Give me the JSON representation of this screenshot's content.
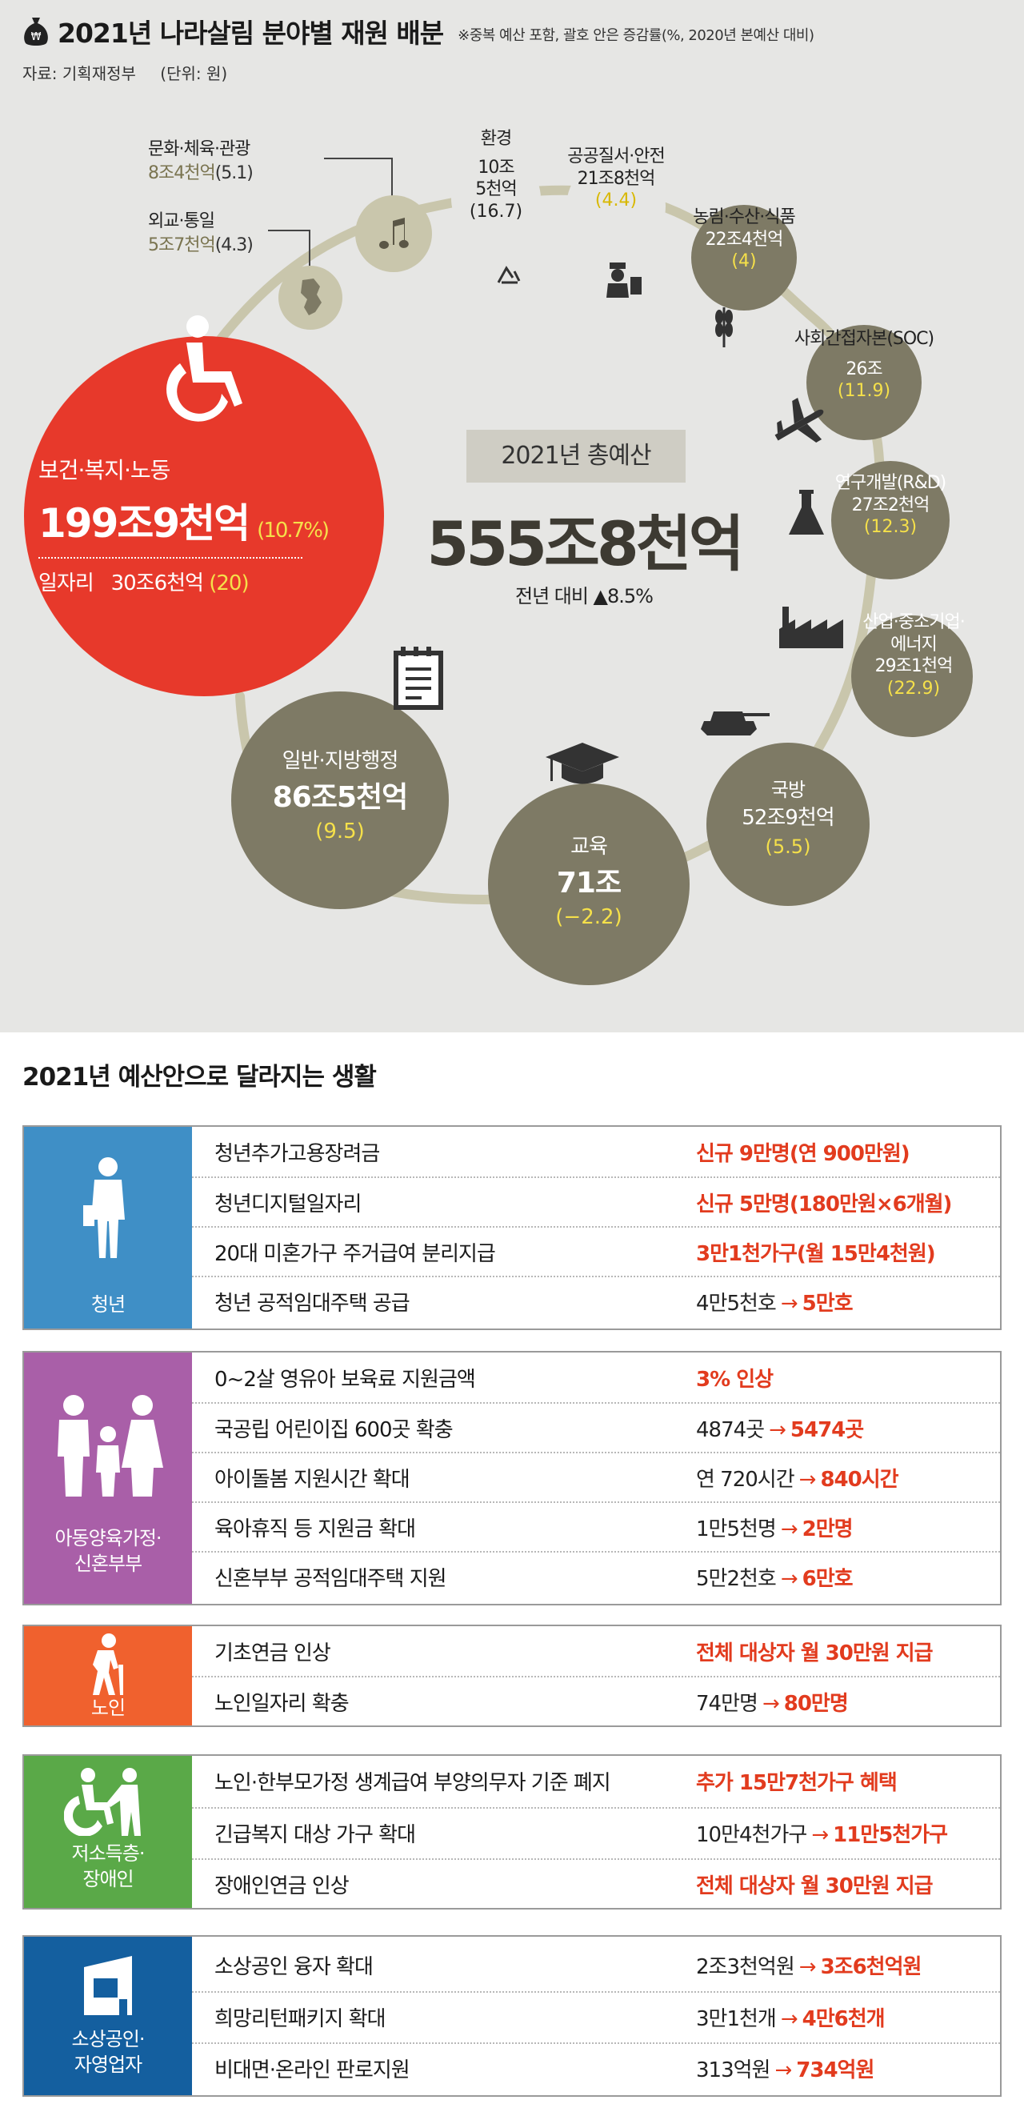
{
  "header": {
    "title": "2021년 나라살림 분야별 재원 배분",
    "note": "※중복 예산 포함, 괄호 안은 증감률(%, 2020년 본예산 대비)",
    "source": "자료: 기획재정부",
    "unit": "(단위: 원)"
  },
  "total": {
    "label": "2021년 총예산",
    "amount": "555조8천억",
    "change": "전년 대비 ▲8.5%"
  },
  "chart_data": {
    "type": "bubble",
    "title": "2021년 나라살림 분야별 재원 배분",
    "unit": "원",
    "change_basis": "증감률(%, 2020년 본예산 대비)",
    "categories": [
      {
        "name": "보건·복지·노동",
        "amount_trillion": 199.9,
        "change_pct": 10.7
      },
      {
        "name": "일자리",
        "amount_trillion": 30.6,
        "change_pct": 20
      },
      {
        "name": "외교·통일",
        "amount_trillion": 5.7,
        "change_pct": 4.3
      },
      {
        "name": "문화·체육·관광",
        "amount_trillion": 8.4,
        "change_pct": 5.1
      },
      {
        "name": "환경",
        "amount_trillion": 10.5,
        "change_pct": 16.7
      },
      {
        "name": "공공질서·안전",
        "amount_trillion": 21.8,
        "change_pct": 4.4
      },
      {
        "name": "농림·수산·식품",
        "amount_trillion": 22.4,
        "change_pct": 4
      },
      {
        "name": "사회간접자본(SOC)",
        "amount_trillion": 26,
        "change_pct": 11.9
      },
      {
        "name": "연구개발(R&D)",
        "amount_trillion": 27.2,
        "change_pct": 12.3
      },
      {
        "name": "산업·중소기업·에너지",
        "amount_trillion": 29.1,
        "change_pct": 22.9
      },
      {
        "name": "국방",
        "amount_trillion": 52.9,
        "change_pct": 5.5
      },
      {
        "name": "교육",
        "amount_trillion": 71,
        "change_pct": -2.2
      },
      {
        "name": "일반·지방행정",
        "amount_trillion": 86.5,
        "change_pct": 9.5
      }
    ]
  },
  "labels": {
    "welfare": {
      "name": "보건·복지·노동",
      "amount": "199조9천억",
      "pct": "(10.7%)",
      "sub_name": "일자리",
      "sub_amount": "30조6천억",
      "sub_pct": "(20)"
    },
    "diplomacy": {
      "name": "외교·통일",
      "amount": "5조7천억",
      "pct": "(4.3)"
    },
    "culture": {
      "name": "문화·체육·관광",
      "amount": "8조4천억",
      "pct": "(5.1)"
    },
    "environment": {
      "name": "환경",
      "amount1": "10조",
      "amount2": "5천억",
      "pct": "(16.7)"
    },
    "safety": {
      "name": "공공질서·안전",
      "amount": "21조8천억",
      "pct": "(4.4)"
    },
    "agriculture": {
      "name": "농림·수산·식품",
      "amount": "22조4천억",
      "pct": "(4)"
    },
    "soc": {
      "name": "사회간접자본(SOC)",
      "amount": "26조",
      "pct": "(11.9)"
    },
    "rnd": {
      "name": "연구개발(R&D)",
      "amount": "27조2천억",
      "pct": "(12.3)"
    },
    "industry": {
      "name1": "산업·중소기업·",
      "name2": "에너지",
      "amount": "29조1천억",
      "pct": "(22.9)"
    },
    "defense": {
      "name": "국방",
      "amount": "52조9천억",
      "pct": "(5.5)"
    },
    "education": {
      "name": "교육",
      "amount": "71조",
      "pct": "(−2.2)"
    },
    "admin": {
      "name": "일반·지방행정",
      "amount": "86조5천억",
      "pct": "(9.5)"
    }
  },
  "colors": {
    "background": "#e6e6e4",
    "bubble": "#7e7a65",
    "bubble_light": "#c9c6ac",
    "ring": "#c9c6ac",
    "welfare": "#e7392b",
    "highlight_yellow": "#f5e04a",
    "accent_red": "#e23b1e",
    "group_youth": "#3f8fc6",
    "group_family": "#a95fa8",
    "group_elderly": "#f0612e",
    "group_lowincome": "#5aa948",
    "group_business": "#145f9f"
  },
  "section2": {
    "title": "2021년 예산안으로 달라지는 생활",
    "groups": [
      {
        "name": "청년",
        "icon": "young-person-icon",
        "rows": [
          {
            "item": "청년추가고용장려금",
            "value": "신규 9만명(연 900만원)"
          },
          {
            "item": "청년디지털일자리",
            "value": "신규 5만명(180만원×6개월)"
          },
          {
            "item": "20대 미혼가구 주거급여 분리지급",
            "value": "3만1천가구(월 15만4천원)"
          },
          {
            "item": "청년 공적임대주택 공급",
            "from": "4만5천호",
            "arrow": "→",
            "to": "5만호"
          }
        ]
      },
      {
        "name1": "아동양육가정·",
        "name2": "신혼부부",
        "icon": "family-icon",
        "rows": [
          {
            "item": "0~2살 영유아 보육료 지원금액",
            "value": "3% 인상"
          },
          {
            "item": "국공립 어린이집 600곳 확충",
            "from": "4874곳",
            "arrow": "→",
            "to": "5474곳"
          },
          {
            "item": "아이돌봄 지원시간 확대",
            "from": "연 720시간",
            "arrow": "→",
            "to": "840시간"
          },
          {
            "item": "육아휴직 등 지원금 확대",
            "from": "1만5천명",
            "arrow": "→",
            "to": "2만명"
          },
          {
            "item": "신혼부부 공적임대주택 지원",
            "from": "5만2천호",
            "arrow": "→",
            "to": "6만호"
          }
        ]
      },
      {
        "name": "노인",
        "icon": "elderly-icon",
        "rows": [
          {
            "item": "기초연금 인상",
            "value": "전체 대상자 월 30만원 지급"
          },
          {
            "item": "노인일자리 확충",
            "from": "74만명",
            "arrow": "→",
            "to": "80만명"
          }
        ]
      },
      {
        "name1": "저소득층·",
        "name2": "장애인",
        "icon": "wheelchair-helper-icon",
        "rows": [
          {
            "item": "노인·한부모가정 생계급여 부양의무자 기준 폐지",
            "value": "추가 15만7천가구 혜택"
          },
          {
            "item": "긴급복지 대상 가구 확대",
            "from": "10만4천가구",
            "arrow": "→",
            "to": "11만5천가구"
          },
          {
            "item": "장애인연금 인상",
            "value": "전체 대상자 월 30만원 지급"
          }
        ]
      },
      {
        "name1": "소상공인·",
        "name2": "자영업자",
        "icon": "shop-icon",
        "rows": [
          {
            "item": "소상공인 융자 확대",
            "from": "2조3천억원",
            "arrow": "→",
            "to": "3조6천억원"
          },
          {
            "item": "희망리턴패키지 확대",
            "from": "3만1천개",
            "arrow": "→",
            "to": "4만6천개"
          },
          {
            "item": "비대면·온라인 판로지원",
            "from": "313억원",
            "arrow": "→",
            "to": "734억원"
          }
        ]
      }
    ]
  }
}
